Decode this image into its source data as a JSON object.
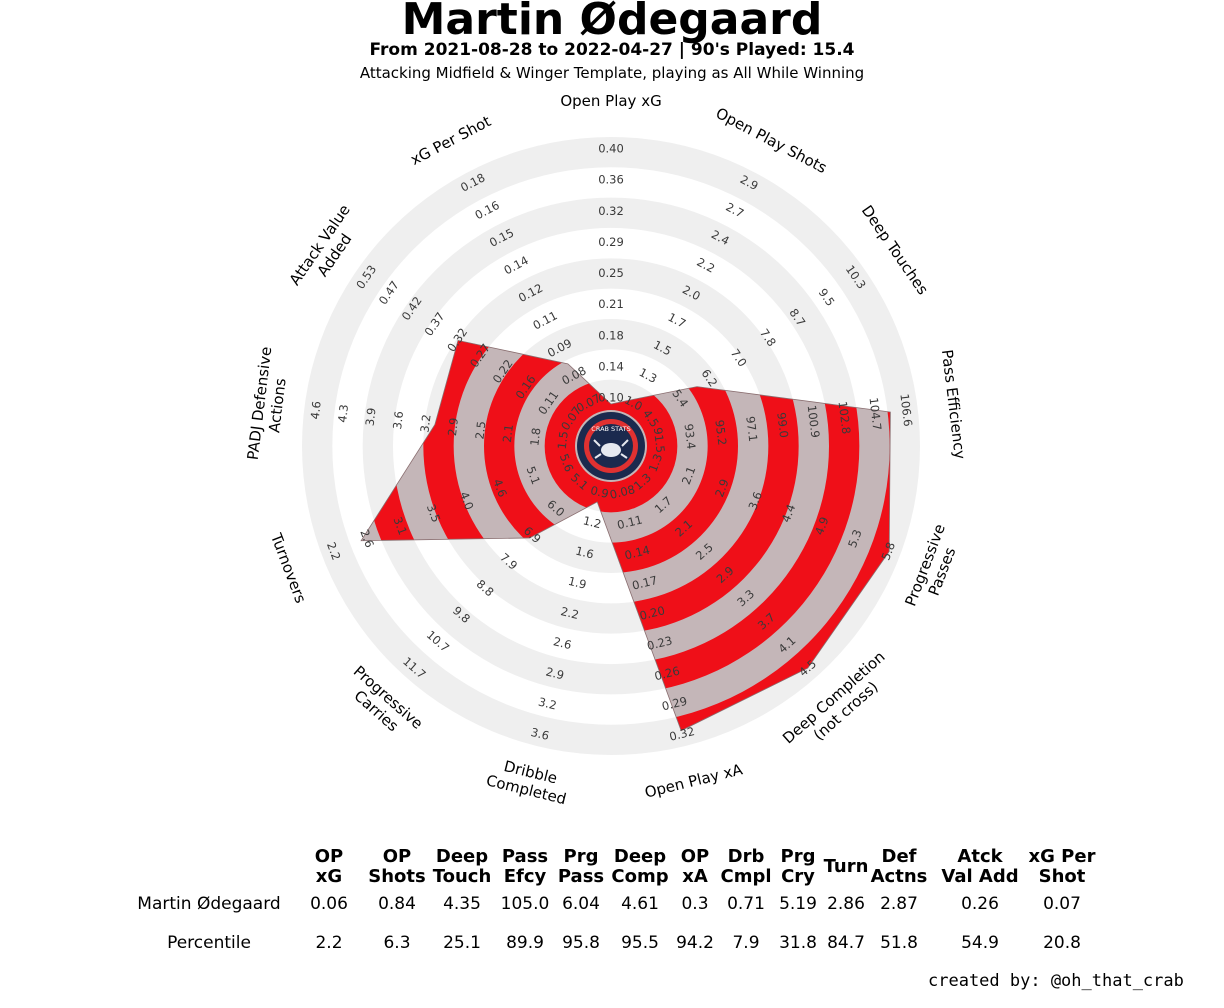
{
  "header": {
    "title": "Martin Ødegaard",
    "subtitle": "From 2021-08-28 to 2022-04-27 | 90's Played: 15.4",
    "template": "Attacking Midfield & Winger Template, playing as All While Winning"
  },
  "chart_data": {
    "type": "radar",
    "categories": [
      "Open Play xG",
      "Open Play Shots",
      "Deep Touches",
      "Pass Efficiency",
      "Progressive Passes",
      "Deep Completion (not cross)",
      "Open Play xA",
      "Dribble Completed",
      "Progressive Carries",
      "Turnovers",
      "PADJ Defensive Actions",
      "Attack Value Added",
      "xG Per Shot"
    ],
    "tick_labels": [
      [
        "0.10",
        "0.14",
        "0.18",
        "0.21",
        "0.25",
        "0.29",
        "0.32",
        "0.36",
        "0.40"
      ],
      [
        "1.0",
        "1.3",
        "1.5",
        "1.7",
        "2.0",
        "2.2",
        "2.4",
        "2.7",
        "2.9"
      ],
      [
        "4.5",
        "5.4",
        "6.2",
        "7.0",
        "7.8",
        "8.7",
        "9.5",
        "10.3"
      ],
      [
        "91.5",
        "93.4",
        "95.2",
        "97.1",
        "99.0",
        "100.9",
        "102.8",
        "104.7",
        "106.6"
      ],
      [
        "1.3",
        "2.1",
        "2.9",
        "3.6",
        "4.4",
        "4.9",
        "5.3",
        "5.8"
      ],
      [
        "1.3",
        "1.7",
        "2.1",
        "2.5",
        "2.9",
        "3.3",
        "3.7",
        "4.1",
        "4.5"
      ],
      [
        "0.08",
        "0.11",
        "0.14",
        "0.17",
        "0.20",
        "0.23",
        "0.26",
        "0.29",
        "0.32"
      ],
      [
        "0.9",
        "1.2",
        "1.6",
        "1.9",
        "2.2",
        "2.6",
        "2.9",
        "3.2",
        "3.6"
      ],
      [
        "5.1",
        "6.0",
        "6.9",
        "7.9",
        "8.8",
        "9.8",
        "10.7",
        "11.7"
      ],
      [
        "5.6",
        "5.1",
        "4.6",
        "4.0",
        "3.5",
        "3.1",
        "2.6",
        "2.2"
      ],
      [
        "1.5",
        "1.8",
        "2.1",
        "2.5",
        "2.9",
        "3.2",
        "3.6",
        "3.9",
        "4.3",
        "4.6"
      ],
      [
        "0.07",
        "0.11",
        "0.16",
        "0.22",
        "0.27",
        "0.32",
        "0.37",
        "0.42",
        "0.47",
        "0.53"
      ],
      [
        "0.07",
        "0.08",
        "0.09",
        "0.11",
        "0.12",
        "0.14",
        "0.15",
        "0.16",
        "0.18"
      ]
    ],
    "percentiles": [
      2.2,
      6.3,
      25.1,
      89.9,
      95.8,
      95.5,
      94.2,
      7.9,
      31.8,
      84.7,
      51.8,
      54.9,
      20.8
    ],
    "colors": {
      "fill_light": "#c4b6b8",
      "fill_dark": "#ef0f18",
      "ring": "#efefef",
      "logo_navy": "#1b2a4e",
      "logo_red": "#e03131"
    }
  },
  "logo": {
    "text": "CRAB STATS"
  },
  "table": {
    "headers": [
      "OP xG",
      "OP Shots",
      "Deep Touch",
      "Pass Efcy",
      "Prg Pass",
      "Deep Comp",
      "OP xA",
      "Drb Cmpl",
      "Prg Cry",
      "Turn",
      "Def Actns",
      "Atck Val Add",
      "xG Per Shot"
    ],
    "rows": [
      {
        "label": "Martin Ødegaard",
        "values": [
          "0.06",
          "0.84",
          "4.35",
          "105.0",
          "6.04",
          "4.61",
          "0.3",
          "0.71",
          "5.19",
          "2.86",
          "2.87",
          "0.26",
          "0.07"
        ]
      },
      {
        "label": "Percentile",
        "values": [
          "2.2",
          "6.3",
          "25.1",
          "89.9",
          "95.8",
          "95.5",
          "94.2",
          "7.9",
          "31.8",
          "84.7",
          "51.8",
          "54.9",
          "20.8"
        ]
      }
    ]
  },
  "footer": {
    "credit": "created by: @oh_that_crab"
  }
}
